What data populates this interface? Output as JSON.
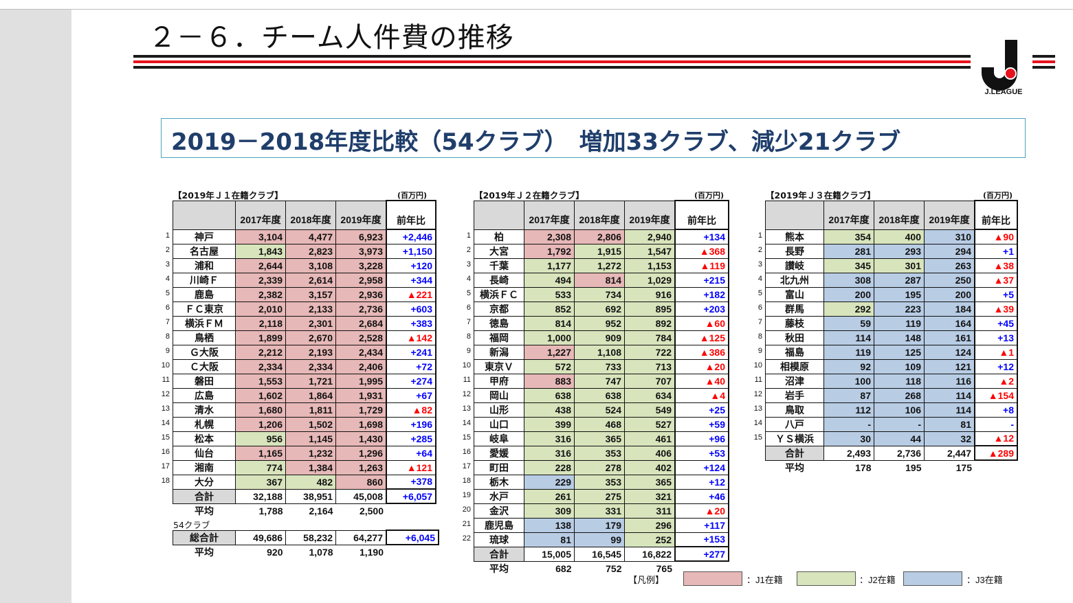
{
  "title": "２－６．チーム人件費の推移",
  "logo_text": "J.LEAGUE",
  "headline": "2019－2018年度比較（54クラブ）　増加33クラブ、減少21クラブ",
  "units": "(百万円)",
  "col_headers": [
    "2017年度",
    "2018年度",
    "2019年度",
    "前年比"
  ],
  "sum_label": "合計",
  "avg_label": "平均",
  "j1": {
    "caption": "【2019年Ｊ１在籍クラブ】",
    "rows": [
      {
        "rank": "1",
        "name": "神戸",
        "v": [
          "3,104",
          "4,477",
          "6,923"
        ],
        "c": [
          "c1",
          "c1",
          "c1"
        ],
        "diff": "+2,446",
        "neg": false
      },
      {
        "rank": "2",
        "name": "名古屋",
        "v": [
          "1,843",
          "2,823",
          "3,973"
        ],
        "c": [
          "c2",
          "c1",
          "c1"
        ],
        "diff": "+1,150",
        "neg": false
      },
      {
        "rank": "3",
        "name": "浦和",
        "v": [
          "2,644",
          "3,108",
          "3,228"
        ],
        "c": [
          "c1",
          "c1",
          "c1"
        ],
        "diff": "+120",
        "neg": false
      },
      {
        "rank": "4",
        "name": "川崎Ｆ",
        "v": [
          "2,339",
          "2,614",
          "2,958"
        ],
        "c": [
          "c1",
          "c1",
          "c1"
        ],
        "diff": "+344",
        "neg": false
      },
      {
        "rank": "5",
        "name": "鹿島",
        "v": [
          "2,382",
          "3,157",
          "2,936"
        ],
        "c": [
          "c1",
          "c1",
          "c1"
        ],
        "diff": "▲221",
        "neg": true
      },
      {
        "rank": "6",
        "name": "ＦＣ東京",
        "v": [
          "2,010",
          "2,133",
          "2,736"
        ],
        "c": [
          "c1",
          "c1",
          "c1"
        ],
        "diff": "+603",
        "neg": false
      },
      {
        "rank": "7",
        "name": "横浜ＦＭ",
        "v": [
          "2,118",
          "2,301",
          "2,684"
        ],
        "c": [
          "c1",
          "c1",
          "c1"
        ],
        "diff": "+383",
        "neg": false
      },
      {
        "rank": "8",
        "name": "鳥栖",
        "v": [
          "1,899",
          "2,670",
          "2,528"
        ],
        "c": [
          "c1",
          "c1",
          "c1"
        ],
        "diff": "▲142",
        "neg": true
      },
      {
        "rank": "9",
        "name": "Ｇ大阪",
        "v": [
          "2,212",
          "2,193",
          "2,434"
        ],
        "c": [
          "c1",
          "c1",
          "c1"
        ],
        "diff": "+241",
        "neg": false
      },
      {
        "rank": "10",
        "name": "Ｃ大阪",
        "v": [
          "2,334",
          "2,334",
          "2,406"
        ],
        "c": [
          "c1",
          "c1",
          "c1"
        ],
        "diff": "+72",
        "neg": false
      },
      {
        "rank": "11",
        "name": "磐田",
        "v": [
          "1,553",
          "1,721",
          "1,995"
        ],
        "c": [
          "c1",
          "c1",
          "c1"
        ],
        "diff": "+274",
        "neg": false
      },
      {
        "rank": "12",
        "name": "広島",
        "v": [
          "1,602",
          "1,864",
          "1,931"
        ],
        "c": [
          "c1",
          "c1",
          "c1"
        ],
        "diff": "+67",
        "neg": false
      },
      {
        "rank": "13",
        "name": "清水",
        "v": [
          "1,680",
          "1,811",
          "1,729"
        ],
        "c": [
          "c1",
          "c1",
          "c1"
        ],
        "diff": "▲82",
        "neg": true
      },
      {
        "rank": "14",
        "name": "札幌",
        "v": [
          "1,206",
          "1,502",
          "1,698"
        ],
        "c": [
          "c1",
          "c1",
          "c1"
        ],
        "diff": "+196",
        "neg": false
      },
      {
        "rank": "15",
        "name": "松本",
        "v": [
          "956",
          "1,145",
          "1,430"
        ],
        "c": [
          "c2",
          "c1",
          "c1"
        ],
        "diff": "+285",
        "neg": false
      },
      {
        "rank": "16",
        "name": "仙台",
        "v": [
          "1,165",
          "1,232",
          "1,296"
        ],
        "c": [
          "c1",
          "c1",
          "c1"
        ],
        "diff": "+64",
        "neg": false
      },
      {
        "rank": "17",
        "name": "湘南",
        "v": [
          "774",
          "1,384",
          "1,263"
        ],
        "c": [
          "c2",
          "c1",
          "c1"
        ],
        "diff": "▲121",
        "neg": true
      },
      {
        "rank": "18",
        "name": "大分",
        "v": [
          "367",
          "482",
          "860"
        ],
        "c": [
          "c2",
          "c2",
          "c1"
        ],
        "diff": "+378",
        "neg": false
      }
    ],
    "sum": {
      "v": [
        "32,188",
        "38,951",
        "45,008"
      ],
      "diff": "+6,057"
    },
    "avg": [
      "1,788",
      "2,164",
      "2,500"
    ]
  },
  "total": {
    "caption": "54クラブ",
    "label": "総合計",
    "v": [
      "49,686",
      "58,232",
      "64,277"
    ],
    "diff": "+6,045",
    "avg": [
      "920",
      "1,078",
      "1,190"
    ]
  },
  "j2": {
    "caption": "【2019年Ｊ２在籍クラブ】",
    "rows": [
      {
        "rank": "1",
        "name": "柏",
        "v": [
          "2,308",
          "2,806",
          "2,940"
        ],
        "c": [
          "c1",
          "c1",
          "c2"
        ],
        "diff": "+134",
        "neg": false
      },
      {
        "rank": "2",
        "name": "大宮",
        "v": [
          "1,792",
          "1,915",
          "1,547"
        ],
        "c": [
          "c1",
          "c2",
          "c2"
        ],
        "diff": "▲368",
        "neg": true
      },
      {
        "rank": "3",
        "name": "千葉",
        "v": [
          "1,177",
          "1,272",
          "1,153"
        ],
        "c": [
          "c2",
          "c2",
          "c2"
        ],
        "diff": "▲119",
        "neg": true
      },
      {
        "rank": "4",
        "name": "長崎",
        "v": [
          "494",
          "814",
          "1,029"
        ],
        "c": [
          "c2",
          "c1",
          "c2"
        ],
        "diff": "+215",
        "neg": false
      },
      {
        "rank": "5",
        "name": "横浜ＦＣ",
        "v": [
          "533",
          "734",
          "916"
        ],
        "c": [
          "c2",
          "c2",
          "c2"
        ],
        "diff": "+182",
        "neg": false
      },
      {
        "rank": "6",
        "name": "京都",
        "v": [
          "852",
          "692",
          "895"
        ],
        "c": [
          "c2",
          "c2",
          "c2"
        ],
        "diff": "+203",
        "neg": false
      },
      {
        "rank": "7",
        "name": "徳島",
        "v": [
          "814",
          "952",
          "892"
        ],
        "c": [
          "c2",
          "c2",
          "c2"
        ],
        "diff": "▲60",
        "neg": true
      },
      {
        "rank": "8",
        "name": "福岡",
        "v": [
          "1,000",
          "909",
          "784"
        ],
        "c": [
          "c2",
          "c2",
          "c2"
        ],
        "diff": "▲125",
        "neg": true
      },
      {
        "rank": "9",
        "name": "新潟",
        "v": [
          "1,227",
          "1,108",
          "722"
        ],
        "c": [
          "c1",
          "c2",
          "c2"
        ],
        "diff": "▲386",
        "neg": true
      },
      {
        "rank": "10",
        "name": "東京Ｖ",
        "v": [
          "572",
          "733",
          "713"
        ],
        "c": [
          "c2",
          "c2",
          "c2"
        ],
        "diff": "▲20",
        "neg": true
      },
      {
        "rank": "11",
        "name": "甲府",
        "v": [
          "883",
          "747",
          "707"
        ],
        "c": [
          "c1",
          "c2",
          "c2"
        ],
        "diff": "▲40",
        "neg": true
      },
      {
        "rank": "12",
        "name": "岡山",
        "v": [
          "638",
          "638",
          "634"
        ],
        "c": [
          "c2",
          "c2",
          "c2"
        ],
        "diff": "▲4",
        "neg": true
      },
      {
        "rank": "13",
        "name": "山形",
        "v": [
          "438",
          "524",
          "549"
        ],
        "c": [
          "c2",
          "c2",
          "c2"
        ],
        "diff": "+25",
        "neg": false
      },
      {
        "rank": "14",
        "name": "山口",
        "v": [
          "399",
          "468",
          "527"
        ],
        "c": [
          "c2",
          "c2",
          "c2"
        ],
        "diff": "+59",
        "neg": false
      },
      {
        "rank": "15",
        "name": "岐阜",
        "v": [
          "316",
          "365",
          "461"
        ],
        "c": [
          "c2",
          "c2",
          "c2"
        ],
        "diff": "+96",
        "neg": false
      },
      {
        "rank": "16",
        "name": "愛媛",
        "v": [
          "316",
          "353",
          "406"
        ],
        "c": [
          "c2",
          "c2",
          "c2"
        ],
        "diff": "+53",
        "neg": false
      },
      {
        "rank": "17",
        "name": "町田",
        "v": [
          "228",
          "278",
          "402"
        ],
        "c": [
          "c2",
          "c2",
          "c2"
        ],
        "diff": "+124",
        "neg": false
      },
      {
        "rank": "18",
        "name": "栃木",
        "v": [
          "229",
          "353",
          "365"
        ],
        "c": [
          "c3",
          "c2",
          "c2"
        ],
        "diff": "+12",
        "neg": false
      },
      {
        "rank": "19",
        "name": "水戸",
        "v": [
          "261",
          "275",
          "321"
        ],
        "c": [
          "c2",
          "c2",
          "c2"
        ],
        "diff": "+46",
        "neg": false
      },
      {
        "rank": "20",
        "name": "金沢",
        "v": [
          "309",
          "331",
          "311"
        ],
        "c": [
          "c2",
          "c2",
          "c2"
        ],
        "diff": "▲20",
        "neg": true
      },
      {
        "rank": "21",
        "name": "鹿児島",
        "v": [
          "138",
          "179",
          "296"
        ],
        "c": [
          "c3",
          "c3",
          "c2"
        ],
        "diff": "+117",
        "neg": false
      },
      {
        "rank": "22",
        "name": "琉球",
        "v": [
          "81",
          "99",
          "252"
        ],
        "c": [
          "c3",
          "c3",
          "c2"
        ],
        "diff": "+153",
        "neg": false
      }
    ],
    "sum": {
      "v": [
        "15,005",
        "16,545",
        "16,822"
      ],
      "diff": "+277"
    },
    "avg": [
      "682",
      "752",
      "765"
    ]
  },
  "j3": {
    "caption": "【2019年Ｊ３在籍クラブ】",
    "rows": [
      {
        "rank": "1",
        "name": "熊本",
        "v": [
          "354",
          "400",
          "310"
        ],
        "c": [
          "c2",
          "c2",
          "c3"
        ],
        "diff": "▲90",
        "neg": true
      },
      {
        "rank": "2",
        "name": "長野",
        "v": [
          "281",
          "293",
          "294"
        ],
        "c": [
          "c3",
          "c3",
          "c3"
        ],
        "diff": "+1",
        "neg": false
      },
      {
        "rank": "3",
        "name": "讃岐",
        "v": [
          "345",
          "301",
          "263"
        ],
        "c": [
          "c2",
          "c2",
          "c3"
        ],
        "diff": "▲38",
        "neg": true
      },
      {
        "rank": "4",
        "name": "北九州",
        "v": [
          "308",
          "287",
          "250"
        ],
        "c": [
          "c3",
          "c3",
          "c3"
        ],
        "diff": "▲37",
        "neg": true
      },
      {
        "rank": "5",
        "name": "富山",
        "v": [
          "200",
          "195",
          "200"
        ],
        "c": [
          "c3",
          "c3",
          "c3"
        ],
        "diff": "+5",
        "neg": false
      },
      {
        "rank": "6",
        "name": "群馬",
        "v": [
          "292",
          "223",
          "184"
        ],
        "c": [
          "c2",
          "c3",
          "c3"
        ],
        "diff": "▲39",
        "neg": true
      },
      {
        "rank": "7",
        "name": "藤枝",
        "v": [
          "59",
          "119",
          "164"
        ],
        "c": [
          "c3",
          "c3",
          "c3"
        ],
        "diff": "+45",
        "neg": false
      },
      {
        "rank": "8",
        "name": "秋田",
        "v": [
          "114",
          "148",
          "161"
        ],
        "c": [
          "c3",
          "c3",
          "c3"
        ],
        "diff": "+13",
        "neg": false
      },
      {
        "rank": "9",
        "name": "福島",
        "v": [
          "119",
          "125",
          "124"
        ],
        "c": [
          "c3",
          "c3",
          "c3"
        ],
        "diff": "▲1",
        "neg": true
      },
      {
        "rank": "10",
        "name": "相模原",
        "v": [
          "92",
          "109",
          "121"
        ],
        "c": [
          "c3",
          "c3",
          "c3"
        ],
        "diff": "+12",
        "neg": false
      },
      {
        "rank": "11",
        "name": "沼津",
        "v": [
          "100",
          "118",
          "116"
        ],
        "c": [
          "c3",
          "c3",
          "c3"
        ],
        "diff": "▲2",
        "neg": true
      },
      {
        "rank": "12",
        "name": "岩手",
        "v": [
          "87",
          "268",
          "114"
        ],
        "c": [
          "c3",
          "c3",
          "c3"
        ],
        "diff": "▲154",
        "neg": true
      },
      {
        "rank": "13",
        "name": "鳥取",
        "v": [
          "112",
          "106",
          "114"
        ],
        "c": [
          "c3",
          "c3",
          "c3"
        ],
        "diff": "+8",
        "neg": false
      },
      {
        "rank": "14",
        "name": "八戸",
        "v": [
          "-",
          "-",
          "81"
        ],
        "c": [
          "c3",
          "c3",
          "c3"
        ],
        "diff": "-",
        "neg": false
      },
      {
        "rank": "15",
        "name": "ＹＳ横浜",
        "v": [
          "30",
          "44",
          "32"
        ],
        "c": [
          "c3",
          "c3",
          "c3"
        ],
        "diff": "▲12",
        "neg": true
      }
    ],
    "sum": {
      "v": [
        "2,493",
        "2,736",
        "2,447"
      ],
      "diff": "▲289",
      "neg": true
    },
    "avg": [
      "178",
      "195",
      "175"
    ]
  },
  "legend": {
    "label": "【凡例】",
    "items": [
      {
        "text": "：J1在籍",
        "color": "#e6b8b7"
      },
      {
        "text": "：J2在籍",
        "color": "#d8e4bc"
      },
      {
        "text": "：J3在籍",
        "color": "#b8cce4"
      }
    ]
  }
}
